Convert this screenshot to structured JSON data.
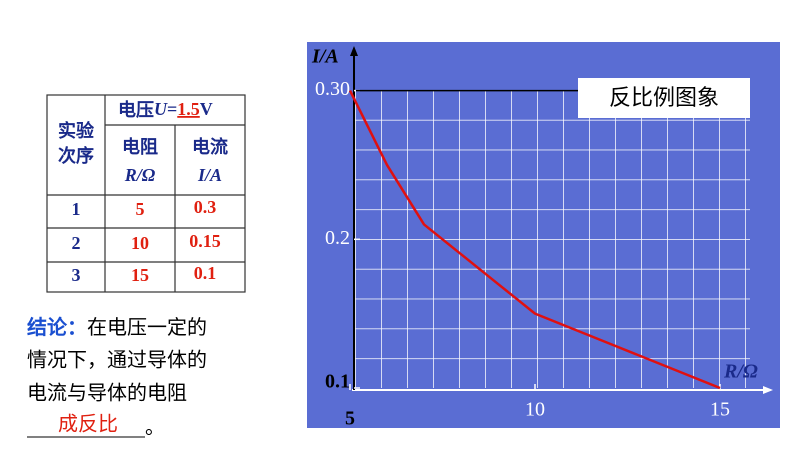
{
  "table": {
    "corner": "实验次序",
    "voltage_label": "电压",
    "voltage_symbol": "U",
    "voltage_equals": "=",
    "voltage_value": "1.5",
    "voltage_unit": "V",
    "col_r": "电阻",
    "col_r_unit": "R/Ω",
    "col_i": "电流",
    "col_i_unit": "I/A",
    "rows": [
      [
        "1",
        "5",
        "0.3"
      ],
      [
        "2",
        "10",
        "0.15"
      ],
      [
        "3",
        "15",
        "0.1"
      ]
    ]
  },
  "conclusion": {
    "label": "结论：",
    "lines": [
      "在电压一定的",
      "情况下，通过导体的",
      "电流与导体的电阻"
    ],
    "answer": "成反比",
    "end": "。"
  },
  "chart_data": {
    "type": "line",
    "title": "反比例图象",
    "x_label": "R/Ω",
    "y_label": "I/A",
    "x": [
      5,
      6,
      7,
      8,
      9,
      10,
      11,
      12,
      13,
      14,
      15
    ],
    "series": [
      {
        "name": "I",
        "color": "#e01010",
        "values": [
          0.3,
          0.25,
          0.21,
          0.19,
          0.17,
          0.15,
          0.14,
          0.13,
          0.12,
          0.11,
          0.1
        ]
      }
    ],
    "xlim": [
      5,
      16
    ],
    "xticks": [
      5,
      10,
      15
    ],
    "ylim": [
      0.1,
      0.33
    ],
    "yticks": [
      0.1,
      0.2,
      {
        "value": 0.3,
        "label": "0.30"
      }
    ],
    "grid": true,
    "background": "#5a6dd3"
  }
}
